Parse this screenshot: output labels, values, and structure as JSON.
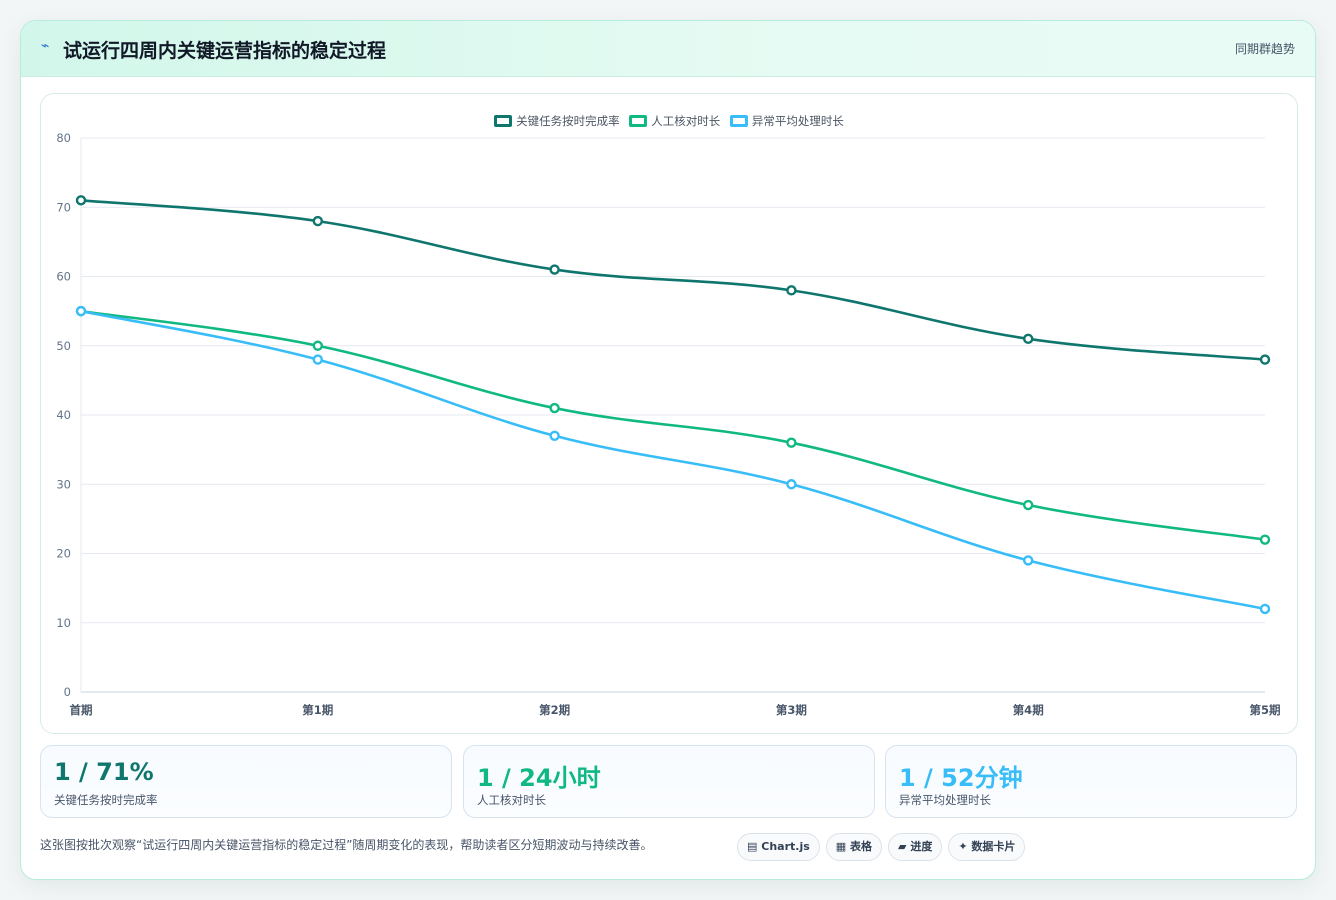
{
  "header": {
    "icon": "lightning-icon",
    "title": "试运行四周内关键运营指标的稳定过程",
    "tag": "同期群趋势"
  },
  "chart_data": {
    "type": "line",
    "categories": [
      "首期",
      "第1期",
      "第2期",
      "第3期",
      "第4期",
      "第5期"
    ],
    "series": [
      {
        "name": "关键任务按时完成率",
        "color": "#0f766e",
        "values": [
          71,
          68,
          61,
          58,
          51,
          48
        ]
      },
      {
        "name": "人工核对时长",
        "color": "#10b981",
        "values": [
          55,
          50,
          41,
          36,
          27,
          22
        ]
      },
      {
        "name": "异常平均处理时长",
        "color": "#38bdf8",
        "values": [
          55,
          48,
          37,
          30,
          19,
          12
        ]
      }
    ],
    "ylim": [
      0,
      80
    ],
    "yticks": [
      0,
      10,
      20,
      30,
      40,
      50,
      60,
      70,
      80
    ],
    "grid": true,
    "legend": "top-center"
  },
  "stats": [
    {
      "value": "1 / 71%",
      "label": "关键任务按时完成率",
      "color": "#0f766e"
    },
    {
      "value": "1 / 24小时",
      "label": "人工核对时长",
      "color": "#10b981"
    },
    {
      "value": "1 / 52分钟",
      "label": "异常平均处理时长",
      "color": "#38bdf8"
    }
  ],
  "note": "这张图按批次观察“试运行四周内关键运营指标的稳定过程”随周期变化的表现，帮助读者区分短期波动与持续改善。",
  "chips": [
    {
      "icon": "chart-icon",
      "glyph": "▤",
      "label": "Chart.js"
    },
    {
      "icon": "table-icon",
      "glyph": "▦",
      "label": "表格"
    },
    {
      "icon": "progress-icon",
      "glyph": "▰",
      "label": "进度"
    },
    {
      "icon": "sparkle-icon",
      "glyph": "✦",
      "label": "数据卡片"
    }
  ]
}
